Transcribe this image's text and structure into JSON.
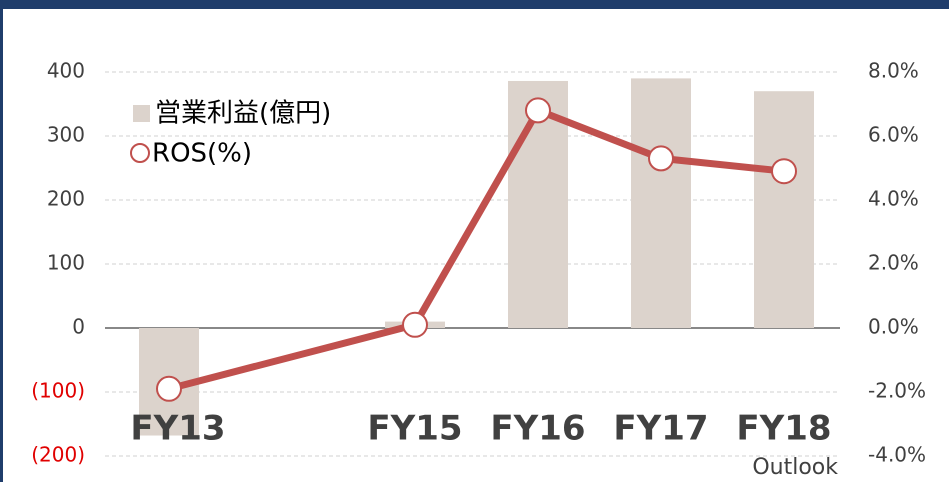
{
  "chart_data": {
    "type": "bar-line",
    "categories": [
      "FY13",
      "FY15",
      "FY16",
      "FY17",
      "FY18"
    ],
    "annotation": "Outlook",
    "series": [
      {
        "name": "営業利益(億円)",
        "color": "#dcd3cc",
        "type": "bar",
        "values": [
          -168,
          10,
          386,
          390,
          370
        ]
      },
      {
        "name": "ROS(%)",
        "color": "#c0504d",
        "type": "line",
        "axis": "y2",
        "values": [
          -1.9,
          0.1,
          6.8,
          5.3,
          4.9
        ]
      }
    ],
    "ylim": [
      -200,
      400
    ],
    "yticks": [
      {
        "value": -200,
        "label": "(200)"
      },
      {
        "value": -100,
        "label": "(100)"
      },
      0,
      100,
      200,
      300,
      400
    ],
    "y2lim": [
      -4,
      8
    ],
    "y2ticks": [
      {
        "value": -4,
        "label": "-4.0%"
      },
      {
        "value": -2,
        "label": "-2.0%"
      },
      {
        "value": 0,
        "label": "0.0%"
      },
      {
        "value": 2,
        "label": "2.0%"
      },
      {
        "value": 4,
        "label": "4.0%"
      },
      {
        "value": 6,
        "label": "6.0%"
      },
      {
        "value": 8,
        "label": "8.0%"
      }
    ],
    "negative_tick_color": "#e00000",
    "grid": true,
    "legend": "upper left"
  }
}
